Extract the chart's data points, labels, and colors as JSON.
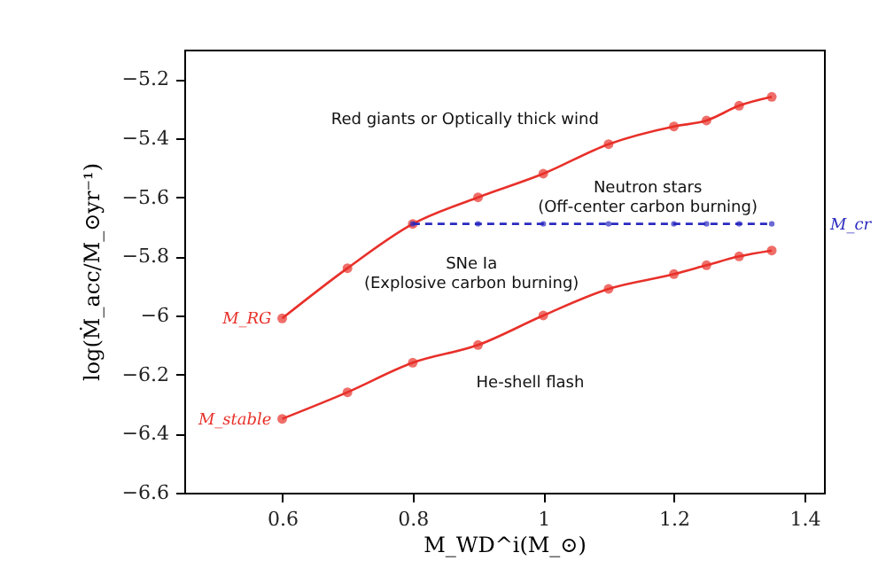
{
  "chart_data": {
    "type": "line",
    "xlabel": "M_WD^i(M_⊙)",
    "ylabel": "log(Ṁ_acc/M_⊙yr⁻¹)",
    "x": [
      0.6,
      0.7,
      0.8,
      0.9,
      1.0,
      1.1,
      1.2,
      1.25,
      1.3,
      1.35
    ],
    "series": [
      {
        "name": "M_RG",
        "color": "#e8302a",
        "line_style": "solid",
        "values": [
          -6.01,
          -5.84,
          -5.69,
          -5.6,
          -5.52,
          -5.42,
          -5.36,
          -5.34,
          -5.29,
          -5.26
        ]
      },
      {
        "name": "M_stable",
        "color": "#e8302a",
        "line_style": "solid",
        "values": [
          -6.35,
          -6.26,
          -6.16,
          -6.1,
          -6.0,
          -5.91,
          -5.86,
          -5.83,
          -5.8,
          -5.78
        ]
      },
      {
        "name": "M_cr",
        "color": "#2a2ac0",
        "line_style": "dashed",
        "x": [
          0.8,
          0.9,
          1.0,
          1.1,
          1.2,
          1.25,
          1.3,
          1.35
        ],
        "values": [
          -5.69,
          -5.69,
          -5.69,
          -5.69,
          -5.69,
          -5.69,
          -5.69,
          -5.69
        ]
      }
    ],
    "annotations": [
      "Red giants or Optically thick wind",
      "Neutron stars\n(Off-center carbon burning)",
      "SNe Ia\n(Explosive carbon burning)",
      "He-shell flash"
    ],
    "xlim": [
      0.45,
      1.43
    ],
    "ylim": [
      -6.6,
      -5.1
    ],
    "xticks": [
      0.6,
      0.8,
      1,
      1.2,
      1.4
    ],
    "yticks": [
      -5.2,
      -5.4,
      -5.6,
      -5.8,
      -6,
      -6.2,
      -6.4,
      -6.6
    ],
    "grid": false,
    "marker": "circle"
  }
}
